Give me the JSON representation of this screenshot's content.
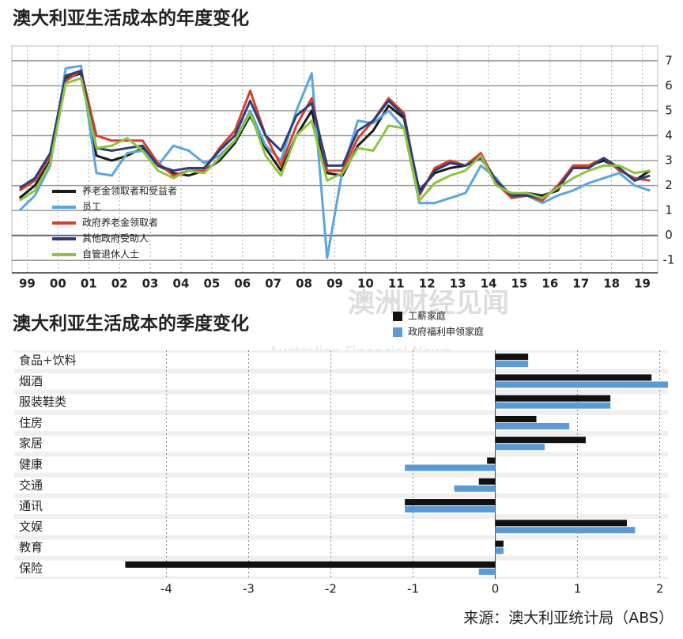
{
  "chart_data": [
    {
      "type": "line",
      "title": "澳大利亚生活成本的年度变化",
      "categories": [
        "99",
        null,
        "00",
        null,
        "01",
        null,
        "02",
        null,
        "03",
        null,
        "04",
        null,
        "05",
        null,
        "06",
        null,
        "07",
        null,
        "08",
        null,
        "09",
        null,
        "10",
        null,
        "11",
        null,
        "12",
        null,
        "13",
        null,
        "14",
        null,
        "15",
        null,
        "16",
        null,
        "17",
        null,
        "18",
        null,
        "19",
        null
      ],
      "series": [
        {
          "name": "养老金领取者和受益者",
          "color": "#1a1a1a",
          "values": [
            1.5,
            2.0,
            3.0,
            6.3,
            6.5,
            3.2,
            3.0,
            3.2,
            3.5,
            2.8,
            2.5,
            2.4,
            2.6,
            3.0,
            3.7,
            4.8,
            3.5,
            2.6,
            4.0,
            5.0,
            2.5,
            2.4,
            3.6,
            4.2,
            5.2,
            4.7,
            1.8,
            2.5,
            2.7,
            2.8,
            3.2,
            2.2,
            1.6,
            1.7,
            1.6,
            1.8,
            2.8,
            2.8,
            3.0,
            2.7,
            2.2,
            2.6
          ]
        },
        {
          "name": "员工",
          "color": "#5aa6dc",
          "values": [
            1.0,
            1.6,
            2.8,
            6.7,
            6.8,
            2.5,
            2.4,
            3.3,
            3.4,
            2.8,
            3.6,
            3.4,
            2.9,
            3.2,
            3.8,
            5.0,
            3.6,
            3.0,
            5.0,
            6.5,
            -0.9,
            2.6,
            4.6,
            4.5,
            5.0,
            4.3,
            1.3,
            1.3,
            1.5,
            1.7,
            2.8,
            2.3,
            1.5,
            1.6,
            1.3,
            1.6,
            1.8,
            2.1,
            2.3,
            2.5,
            2.0,
            1.8
          ]
        },
        {
          "name": "政府养老金领取者",
          "color": "#d6402b",
          "values": [
            1.8,
            2.2,
            3.2,
            6.2,
            6.6,
            4.0,
            3.8,
            3.8,
            3.8,
            2.9,
            2.4,
            2.6,
            2.6,
            3.5,
            4.2,
            5.8,
            4.0,
            2.8,
            4.4,
            5.5,
            2.6,
            2.6,
            3.9,
            4.6,
            5.5,
            4.9,
            1.6,
            2.7,
            3.0,
            2.8,
            3.3,
            2.1,
            1.5,
            1.6,
            1.4,
            2.0,
            2.8,
            2.8,
            3.1,
            2.6,
            2.3,
            2.2
          ]
        },
        {
          "name": "其他政府受助人",
          "color": "#2c3e7a",
          "values": [
            1.9,
            2.3,
            3.3,
            6.4,
            6.6,
            3.5,
            3.4,
            3.5,
            3.6,
            2.8,
            2.6,
            2.7,
            2.7,
            3.4,
            4.0,
            5.4,
            4.0,
            3.4,
            4.8,
            5.3,
            2.8,
            2.8,
            4.2,
            4.6,
            5.4,
            4.8,
            1.7,
            2.6,
            2.9,
            2.8,
            3.1,
            2.2,
            1.6,
            1.6,
            1.5,
            1.9,
            2.7,
            2.7,
            3.1,
            2.7,
            2.2,
            2.4
          ]
        },
        {
          "name": "自管退休人士",
          "color": "#8cc43f",
          "values": [
            1.4,
            1.8,
            2.9,
            6.1,
            6.3,
            3.5,
            3.6,
            3.9,
            3.4,
            2.6,
            2.3,
            2.6,
            2.5,
            3.1,
            3.8,
            4.9,
            3.2,
            2.4,
            4.0,
            4.6,
            2.2,
            2.5,
            3.5,
            3.4,
            4.4,
            4.3,
            1.4,
            2.1,
            2.4,
            2.6,
            3.2,
            2.0,
            1.7,
            1.7,
            1.5,
            1.9,
            2.3,
            2.6,
            2.8,
            2.8,
            2.5,
            2.6
          ]
        }
      ],
      "ylim": [
        -1.5,
        7.6
      ],
      "yticks": [
        -1,
        0,
        1,
        2,
        3,
        4,
        5,
        6,
        7
      ],
      "grid": true,
      "legend": "lower left"
    },
    {
      "type": "bar",
      "orientation": "horizontal",
      "title": "澳大利亚生活成本的季度变化",
      "categories": [
        "食品+饮料",
        "烟酒",
        "服装鞋类",
        "住房",
        "家居",
        "健康",
        "交通",
        "通讯",
        "文娱",
        "教育",
        "保险"
      ],
      "series": [
        {
          "name": "工薪家庭",
          "color": "#111111",
          "values": [
            0.4,
            1.9,
            1.4,
            0.5,
            1.1,
            -0.1,
            -0.2,
            -1.1,
            1.6,
            0.1,
            -4.5
          ]
        },
        {
          "name": "政府福利申领家庭",
          "color": "#5b9bd5",
          "values": [
            0.4,
            2.1,
            1.4,
            0.9,
            0.6,
            -1.1,
            -0.5,
            -1.1,
            1.7,
            0.1,
            -0.2
          ]
        }
      ],
      "xlim": [
        -5.85,
        2.1
      ],
      "xticks": [
        -4,
        -3,
        -2,
        -1,
        0,
        1,
        2
      ],
      "grid": true,
      "legend": "upper right"
    }
  ],
  "watermark": {
    "name": "澳洲财经见闻",
    "english": "Australian Financial News"
  },
  "source": "来源：澳大利亚统计局（ABS）"
}
